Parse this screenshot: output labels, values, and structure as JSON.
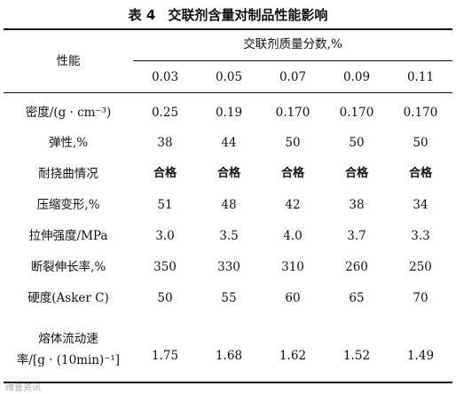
{
  "table": {
    "number": "表 4",
    "title": "交联剂含量对制品性能影响",
    "property_header": "性能",
    "group_header": "交联剂质量分数,%",
    "columns": [
      "0.03",
      "0.05",
      "0.07",
      "0.09",
      "0.11"
    ],
    "rows": [
      {
        "label": "密度/(g · cm⁻³)",
        "values": [
          "0.25",
          "0.19",
          "0.170",
          "0.170",
          "0.170"
        ]
      },
      {
        "label": "弹性,%",
        "values": [
          "38",
          "44",
          "50",
          "50",
          "50"
        ]
      },
      {
        "label": "耐挠曲情况",
        "values": [
          "合格",
          "合格",
          "合格",
          "合格",
          "合格"
        ]
      },
      {
        "label": "压缩变形,%",
        "values": [
          "51",
          "48",
          "42",
          "38",
          "34"
        ]
      },
      {
        "label": "拉伸强度/MPa",
        "values": [
          "3.0",
          "3.5",
          "4.0",
          "3.7",
          "3.3"
        ]
      },
      {
        "label": "断裂伸长率,%",
        "values": [
          "350",
          "330",
          "310",
          "260",
          "250"
        ]
      },
      {
        "label": "硬度(Asker C)",
        "values": [
          "50",
          "55",
          "60",
          "65",
          "70"
        ]
      }
    ],
    "last_row": {
      "label_line1": "熔体流动速",
      "label_line2": "率/[g · (10min)⁻¹]",
      "values": [
        "1.75",
        "1.68",
        "1.62",
        "1.52",
        "1.49"
      ]
    }
  },
  "watermark": "维普资讯"
}
